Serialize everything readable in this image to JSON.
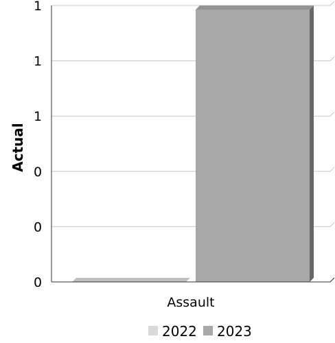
{
  "chart_data": {
    "type": "bar",
    "title": "",
    "xlabel": "",
    "ylabel": "Actual",
    "categories": [
      "Assault"
    ],
    "y_tick_labels": [
      "0",
      "0",
      "0",
      "1",
      "1",
      "1"
    ],
    "ylim": [
      0,
      1
    ],
    "grid": true,
    "legend_position": "bottom",
    "series": [
      {
        "name": "2022",
        "values": [
          0
        ],
        "color": "#d9d9d9"
      },
      {
        "name": "2023",
        "values": [
          1
        ],
        "color": "#a8a8a8"
      }
    ]
  }
}
